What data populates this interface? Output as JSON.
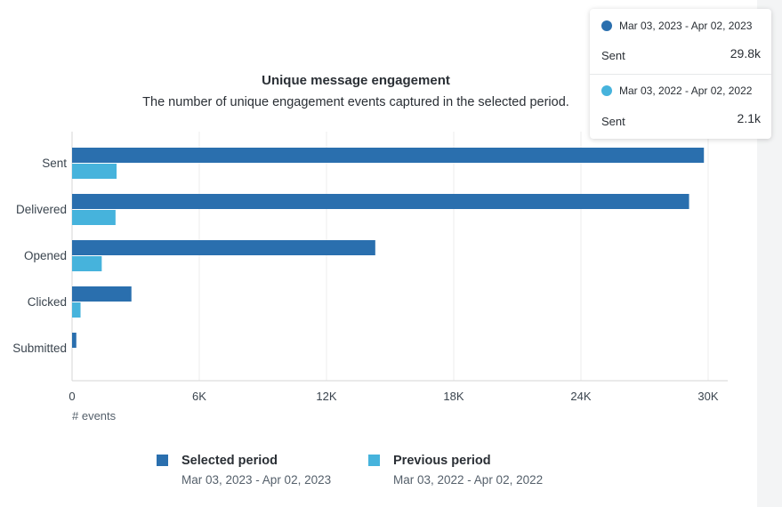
{
  "chart_data": {
    "type": "bar",
    "orientation": "horizontal",
    "title": "Unique message engagement",
    "subtitle": "The number of unique engagement events captured in the selected period.",
    "categories": [
      "Sent",
      "Delivered",
      "Opened",
      "Clicked",
      "Submitted"
    ],
    "series": [
      {
        "name": "Selected period",
        "range": "Mar 03, 2023 - Apr 02, 2023",
        "color": "#2a6fae",
        "values": [
          29800,
          29100,
          14300,
          2800,
          200
        ]
      },
      {
        "name": "Previous period",
        "range": "Mar 03, 2022 - Apr 02, 2022",
        "color": "#46b3dc",
        "values": [
          2100,
          2050,
          1400,
          400,
          0
        ]
      }
    ],
    "xlabel": "# events",
    "xlim": [
      0,
      30000
    ],
    "xticks": [
      0,
      6000,
      12000,
      18000,
      24000,
      30000
    ],
    "xtick_labels": [
      "0",
      "6K",
      "12K",
      "18K",
      "24K",
      "30K"
    ],
    "grid": true,
    "legend": "bottom"
  },
  "tooltip": {
    "rows": [
      {
        "range": "Mar 03, 2023 - Apr 02, 2023",
        "metric": "Sent",
        "value": "29.8k",
        "color": "#2a6fae"
      },
      {
        "range": "Mar 03, 2022 - Apr 02, 2022",
        "metric": "Sent",
        "value": "2.1k",
        "color": "#46b3dc"
      }
    ]
  }
}
